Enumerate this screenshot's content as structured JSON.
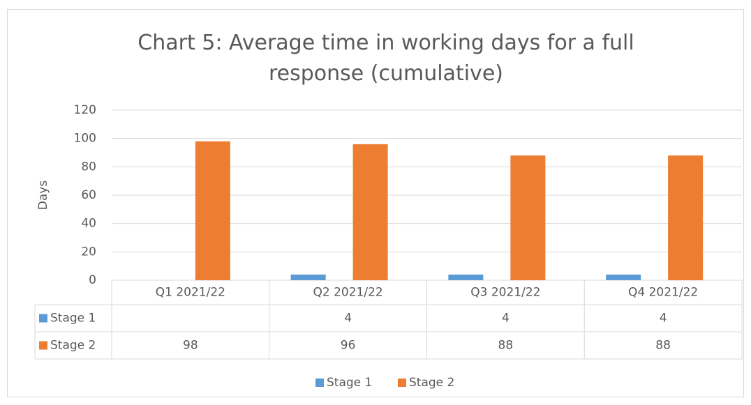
{
  "chart_data": {
    "type": "bar",
    "title": "Chart 5: Average time in working days for a full response (cumulative)",
    "y_label": "Days",
    "categories": [
      "Q1 2021/22",
      "Q2 2021/22",
      "Q3 2021/22",
      "Q4 2021/22"
    ],
    "series": [
      {
        "name": "Stage 1",
        "color": "#5b9bd5",
        "values": [
          null,
          4,
          4,
          4
        ]
      },
      {
        "name": "Stage 2",
        "color": "#ed7d31",
        "values": [
          98,
          96,
          88,
          88
        ]
      }
    ],
    "ylim": [
      0,
      120
    ],
    "yticks": [
      0,
      20,
      40,
      60,
      80,
      100,
      120
    ],
    "grid": true,
    "legend": "bottom",
    "data_table": true
  }
}
